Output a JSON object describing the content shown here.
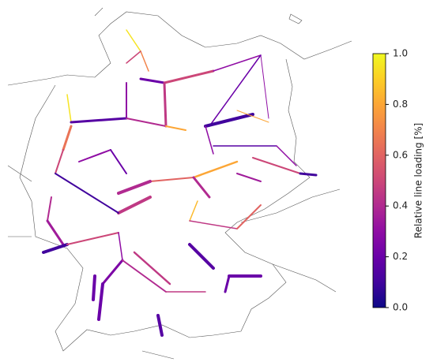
{
  "chart_data": {
    "type": "map",
    "colormap": "plasma",
    "colorbar": {
      "label": "Relative line loading [%]",
      "lim": [
        0,
        1
      ],
      "ticks": [
        {
          "value": 0,
          "label": "0.0"
        },
        0.2,
        0.4,
        0.6,
        0.8,
        {
          "value": 1,
          "label": "1.0"
        }
      ]
    },
    "line_loading": [
      0.95,
      0.7,
      0.5,
      0.2,
      0.5,
      0.3,
      0.3,
      0.2,
      0.45,
      0.3,
      0.95,
      0.15,
      0.4,
      0.8,
      0.1,
      0.3,
      0.15,
      0.3,
      0.5,
      0.1,
      0.8,
      0.6,
      0.4,
      0.85,
      0.4,
      0.45,
      0.65,
      0.5,
      0.1,
      0.4,
      0.35,
      0.1,
      0.5,
      0.3,
      0.25,
      0.2,
      0.2,
      0.4,
      0.45,
      0.45,
      0.6,
      0.15,
      0.2,
      0.2,
      0.15,
      0.45,
      0.35,
      0.3,
      0.2,
      0.8
    ]
  }
}
